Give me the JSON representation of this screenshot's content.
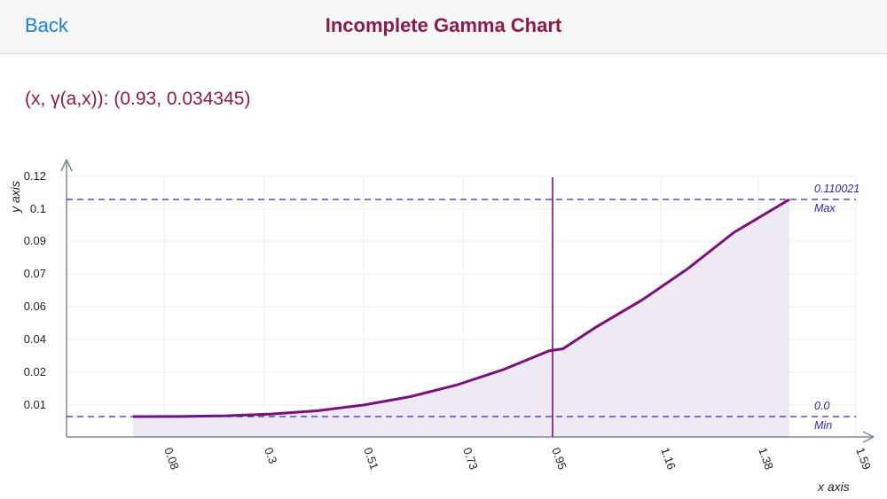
{
  "navbar": {
    "back_label": "Back",
    "title": "Incomplete Gamma Chart"
  },
  "readout": {
    "prefix": "(x, ",
    "symbol": "γ",
    "suffix": "(a,x)): (0.93, 0.034345)"
  },
  "colors": {
    "accent": "#8b1a4a",
    "back": "#1a7fe0",
    "curve": "#7a107a",
    "fill": "#efe9f3",
    "guide": "#2b2bb8",
    "axis": "#7a8a9a"
  },
  "chart_data": {
    "type": "area",
    "xlabel": "x axis",
    "ylabel": "y axis",
    "x_ticks": [
      "0.08",
      "0.3",
      "0.51",
      "0.73",
      "0.95",
      "1.16",
      "1.38",
      "1.59"
    ],
    "y_ticks": [
      "0.01",
      "0.02",
      "0.04",
      "0.06",
      "0.07",
      "0.09",
      "0.1",
      "0.12"
    ],
    "x_range": [
      0.08,
      1.59
    ],
    "y_range": [
      0.0,
      0.12
    ],
    "grid": true,
    "max_line": {
      "value_label": "0.110021",
      "name": "Max",
      "y": 0.110021
    },
    "min_line": {
      "value_label": "0.0",
      "name": "Min",
      "y": 0.0
    },
    "cursor_x": 0.93,
    "series": [
      {
        "x": [
          0.0,
          0.1,
          0.2,
          0.3,
          0.4,
          0.5,
          0.6,
          0.7,
          0.8,
          0.9,
          0.93,
          1.0,
          1.1,
          1.2,
          1.3,
          1.42
        ],
        "y": [
          0.0,
          5e-05,
          0.0004,
          0.0013,
          0.003,
          0.0059,
          0.0101,
          0.016,
          0.0237,
          0.0333,
          0.034345,
          0.0451,
          0.0589,
          0.0749,
          0.0933,
          0.110021
        ]
      }
    ]
  }
}
